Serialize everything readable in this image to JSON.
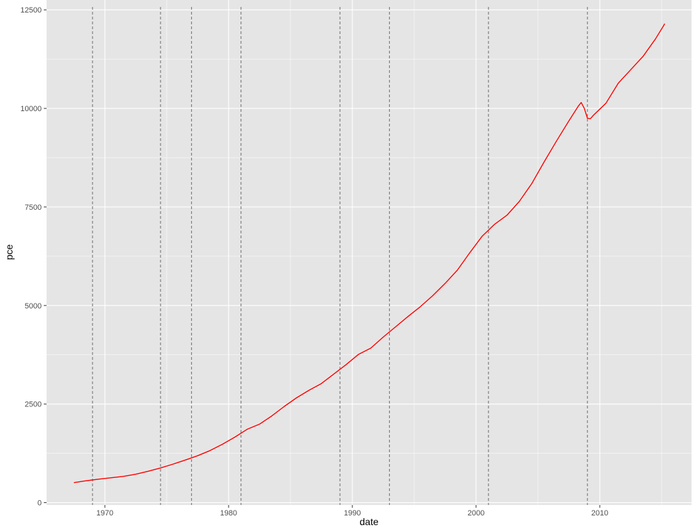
{
  "chart_data": {
    "type": "line",
    "title": "",
    "xlabel": "date",
    "ylabel": "pce",
    "xlim": [
      "1965-04-15",
      "2017-06-01"
    ],
    "ylim": [
      -60,
      12750
    ],
    "x_ticks": [
      {
        "label": "1970",
        "value": "1970-01-01"
      },
      {
        "label": "1980",
        "value": "1980-01-01"
      },
      {
        "label": "1990",
        "value": "1990-01-01"
      },
      {
        "label": "2000",
        "value": "2000-01-01"
      },
      {
        "label": "2010",
        "value": "2010-01-01"
      }
    ],
    "y_ticks": [
      0,
      2500,
      5000,
      7500,
      10000,
      12500
    ],
    "y_tick_labels": [
      "0",
      "2500",
      "5000",
      "7500",
      "10000",
      "12500"
    ],
    "grid": true,
    "background": "#e5e5e5",
    "grid_color": "#ffffff",
    "series": [
      {
        "color": "#ff0000",
        "points": [
          [
            "1967-07-01",
            507
          ],
          [
            "1968-07-01",
            555
          ],
          [
            "1969-07-01",
            595
          ],
          [
            "1970-07-01",
            630
          ],
          [
            "1971-07-01",
            665
          ],
          [
            "1972-07-01",
            720
          ],
          [
            "1973-07-01",
            795
          ],
          [
            "1974-07-01",
            880
          ],
          [
            "1975-07-01",
            975
          ],
          [
            "1976-07-01",
            1080
          ],
          [
            "1977-07-01",
            1190
          ],
          [
            "1978-07-01",
            1320
          ],
          [
            "1979-07-01",
            1480
          ],
          [
            "1980-07-01",
            1660
          ],
          [
            "1981-07-01",
            1860
          ],
          [
            "1982-07-01",
            1990
          ],
          [
            "1983-07-01",
            2200
          ],
          [
            "1984-07-01",
            2440
          ],
          [
            "1985-07-01",
            2660
          ],
          [
            "1986-07-01",
            2850
          ],
          [
            "1987-07-01",
            3020
          ],
          [
            "1988-07-01",
            3260
          ],
          [
            "1989-07-01",
            3500
          ],
          [
            "1990-07-01",
            3760
          ],
          [
            "1991-07-01",
            3920
          ],
          [
            "1992-07-01",
            4200
          ],
          [
            "1993-07-01",
            4460
          ],
          [
            "1994-07-01",
            4720
          ],
          [
            "1995-07-01",
            4970
          ],
          [
            "1996-07-01",
            5250
          ],
          [
            "1997-07-01",
            5560
          ],
          [
            "1998-07-01",
            5900
          ],
          [
            "1999-07-01",
            6340
          ],
          [
            "2000-07-01",
            6760
          ],
          [
            "2001-07-01",
            7060
          ],
          [
            "2002-07-01",
            7290
          ],
          [
            "2003-07-01",
            7640
          ],
          [
            "2004-07-01",
            8090
          ],
          [
            "2005-07-01",
            8640
          ],
          [
            "2006-07-01",
            9170
          ],
          [
            "2007-07-01",
            9680
          ],
          [
            "2008-04-01",
            10050
          ],
          [
            "2008-07-01",
            10150
          ],
          [
            "2008-10-01",
            10000
          ],
          [
            "2009-01-01",
            9750
          ],
          [
            "2009-04-01",
            9740
          ],
          [
            "2009-07-01",
            9830
          ],
          [
            "2010-07-01",
            10130
          ],
          [
            "2011-07-01",
            10640
          ],
          [
            "2012-07-01",
            10980
          ],
          [
            "2013-07-01",
            11320
          ],
          [
            "2014-07-01",
            11760
          ],
          [
            "2015-03-01",
            12100
          ],
          [
            "2015-04-01",
            12150
          ]
        ]
      }
    ],
    "vertical_lines": {
      "color": "#7f7f7f",
      "style": "dashed",
      "dates": [
        "1969-01-01",
        "1974-07-01",
        "1977-01-01",
        "1981-01-01",
        "1989-01-01",
        "1993-01-01",
        "2001-01-01",
        "2009-01-01"
      ]
    }
  }
}
